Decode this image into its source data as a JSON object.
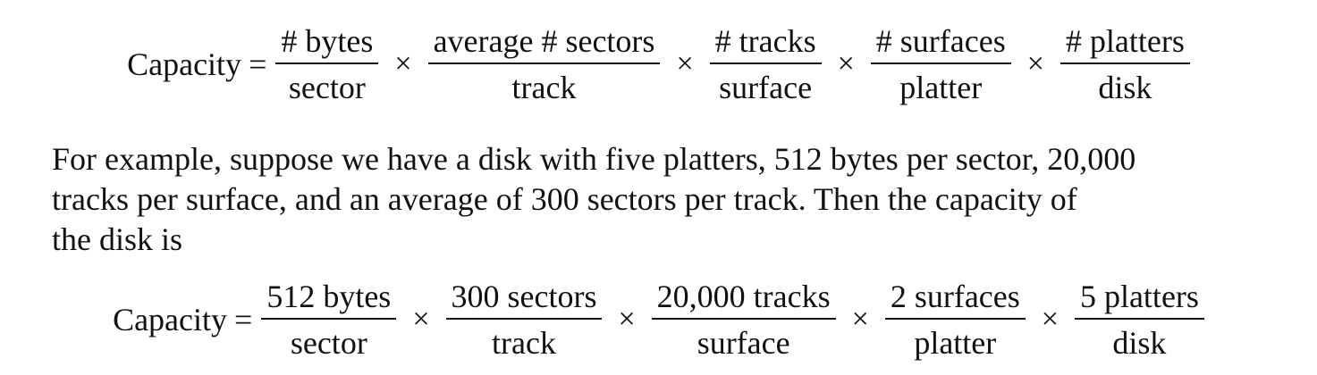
{
  "equation_general": {
    "lhs": "Capacity",
    "equals": "=",
    "times": "×",
    "fractions": [
      {
        "numerator": "# bytes",
        "denominator": "sector"
      },
      {
        "numerator": "average # sectors",
        "denominator": "track"
      },
      {
        "numerator": "# tracks",
        "denominator": "surface"
      },
      {
        "numerator": "# surfaces",
        "denominator": "platter"
      },
      {
        "numerator": "# platters",
        "denominator": "disk"
      }
    ]
  },
  "paragraph": {
    "lines": [
      "For example, suppose we have a disk with five platters, 512 bytes per sector, 20,000",
      "tracks per surface, and an average of 300 sectors per track. Then the capacity of",
      "the disk is"
    ]
  },
  "equation_example": {
    "lhs": "Capacity",
    "equals": "=",
    "times": "×",
    "fractions": [
      {
        "numerator": "512 bytes",
        "denominator": "sector"
      },
      {
        "numerator": "300 sectors",
        "denominator": "track"
      },
      {
        "numerator": "20,000 tracks",
        "denominator": "surface"
      },
      {
        "numerator": "2 surfaces",
        "denominator": "platter"
      },
      {
        "numerator": "5 platters",
        "denominator": "disk"
      }
    ]
  }
}
